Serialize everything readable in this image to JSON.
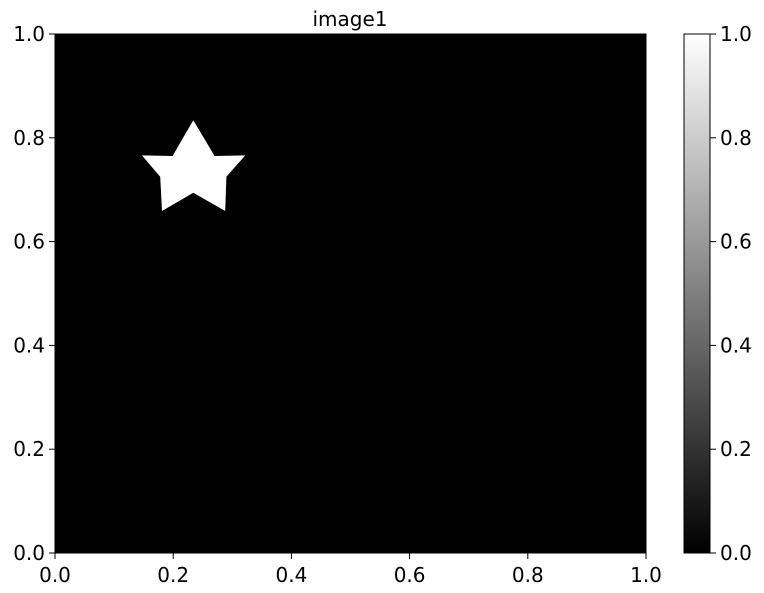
{
  "chart_data": {
    "type": "heatmap",
    "title": "image1",
    "xlabel": "",
    "ylabel": "",
    "xlim": [
      0.0,
      1.0
    ],
    "ylim": [
      0.0,
      1.0
    ],
    "x_ticks": [
      "0.0",
      "0.2",
      "0.4",
      "0.6",
      "0.8",
      "1.0"
    ],
    "y_ticks": [
      "0.0",
      "0.2",
      "0.4",
      "0.6",
      "0.8",
      "1.0"
    ],
    "colormap": "gray",
    "background_value": 0.0,
    "grid": false,
    "shapes": [
      {
        "shape": "star",
        "value": 1.0,
        "outer_points": [
          [
            0.234,
            0.834
          ],
          [
            0.322,
            0.766
          ],
          [
            0.288,
            0.659
          ],
          [
            0.181,
            0.659
          ],
          [
            0.147,
            0.766
          ]
        ],
        "inner_points": [
          [
            0.27,
            0.765
          ],
          [
            0.29,
            0.725
          ],
          [
            0.234,
            0.694
          ],
          [
            0.178,
            0.725
          ],
          [
            0.199,
            0.765
          ]
        ]
      }
    ],
    "colorbar": {
      "range": [
        0.0,
        1.0
      ],
      "ticks": [
        "0.0",
        "0.2",
        "0.4",
        "0.6",
        "0.8",
        "1.0"
      ],
      "low_color": "#000000",
      "high_color": "#ffffff"
    }
  }
}
